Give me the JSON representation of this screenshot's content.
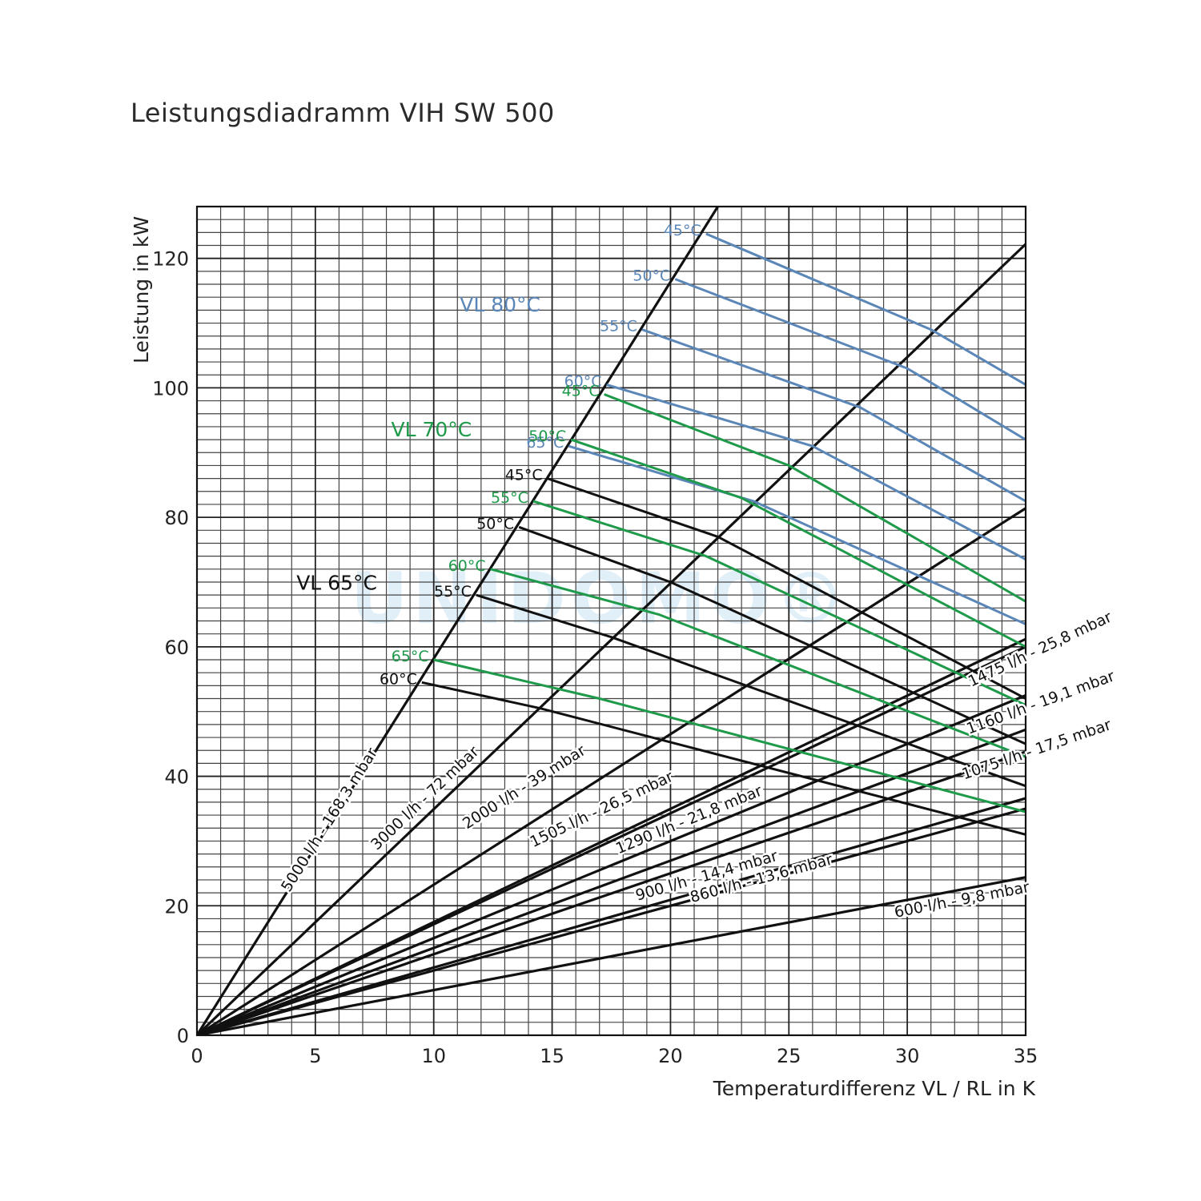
{
  "title": "Leistungsdiadramm VIH SW 500",
  "watermark": "UNIDOMO®",
  "chart_data": {
    "type": "line",
    "title": "Leistungsdiadramm VIH SW 500",
    "xlabel": "Temperaturdifferenz VL / RL in K",
    "ylabel": "Leistung in kW",
    "xlim": [
      0,
      35
    ],
    "ylim": [
      0,
      128
    ],
    "xticks": [
      0,
      5,
      10,
      15,
      20,
      25,
      30,
      35
    ],
    "yticks": [
      0,
      20,
      40,
      60,
      80,
      100,
      120
    ],
    "grid": true,
    "colors": {
      "VL 65°C": "#111111",
      "VL 70°C": "#1e9a4a",
      "VL 80°C": "#5b86b8",
      "flow": "#111111"
    },
    "group_labels": [
      "VL 80°C",
      "VL 70°C",
      "VL 65°C"
    ],
    "flow_lines": [
      {
        "label": "5000 l/h - 168,3 mbar",
        "points": [
          [
            0,
            0
          ],
          [
            22,
            128
          ]
        ]
      },
      {
        "label": "3000 l/h - 72 mbar",
        "points": [
          [
            0,
            0
          ],
          [
            35,
            122.2
          ]
        ]
      },
      {
        "label": "2000 l/h - 39 mbar",
        "points": [
          [
            0,
            0
          ],
          [
            35,
            81.4
          ]
        ]
      },
      {
        "label": "1505 l/h - 26,5 mbar",
        "points": [
          [
            0,
            0
          ],
          [
            35,
            61.2
          ]
        ]
      },
      {
        "label": "1475 l/h - 25,8 mbar",
        "points": [
          [
            0,
            0
          ],
          [
            35,
            60.0
          ]
        ]
      },
      {
        "label": "1290 l/h - 21,8 mbar",
        "points": [
          [
            0,
            0
          ],
          [
            35,
            52.5
          ]
        ]
      },
      {
        "label": "1160 l/h - 19,1 mbar",
        "points": [
          [
            0,
            0
          ],
          [
            35,
            47.2
          ]
        ]
      },
      {
        "label": "1075 l/h - 17,5 mbar",
        "points": [
          [
            0,
            0
          ],
          [
            35,
            43.8
          ]
        ]
      },
      {
        "label": "900 l/h - 14,4 mbar",
        "points": [
          [
            0,
            0
          ],
          [
            35,
            36.6
          ]
        ]
      },
      {
        "label": "860 l/h - 13,6 mbar",
        "points": [
          [
            0,
            0
          ],
          [
            35,
            35.0
          ]
        ]
      },
      {
        "label": "600 l/h - 9,8 mbar",
        "points": [
          [
            0,
            0
          ],
          [
            35,
            24.4
          ]
        ]
      }
    ],
    "series": [
      {
        "group": "VL 80°C",
        "name": "45°C",
        "points": [
          [
            21.5,
            123.8
          ],
          [
            31,
            109
          ],
          [
            35,
            100.5
          ]
        ]
      },
      {
        "group": "VL 80°C",
        "name": "50°C",
        "points": [
          [
            20.2,
            116.8
          ],
          [
            30,
            103
          ],
          [
            35,
            92
          ]
        ]
      },
      {
        "group": "VL 80°C",
        "name": "55°C",
        "points": [
          [
            18.8,
            109
          ],
          [
            28,
            97
          ],
          [
            35,
            82.5
          ]
        ]
      },
      {
        "group": "VL 80°C",
        "name": "60°C",
        "points": [
          [
            17.3,
            100.5
          ],
          [
            26,
            91
          ],
          [
            35,
            73.5
          ]
        ]
      },
      {
        "group": "VL 80°C",
        "name": "65°C",
        "points": [
          [
            15.7,
            91
          ],
          [
            23.5,
            82.5
          ],
          [
            35,
            63.5
          ]
        ]
      },
      {
        "group": "VL 70°C",
        "name": "45°C",
        "points": [
          [
            17.2,
            99
          ],
          [
            25,
            88
          ],
          [
            35,
            67
          ]
        ]
      },
      {
        "group": "VL 70°C",
        "name": "50°C",
        "points": [
          [
            15.8,
            92
          ],
          [
            23,
            83
          ],
          [
            35,
            60
          ]
        ]
      },
      {
        "group": "VL 70°C",
        "name": "55°C",
        "points": [
          [
            14.2,
            82.5
          ],
          [
            21.5,
            74
          ],
          [
            35,
            51
          ]
        ]
      },
      {
        "group": "VL 70°C",
        "name": "60°C",
        "points": [
          [
            12.4,
            72
          ],
          [
            19.5,
            65
          ],
          [
            35,
            43
          ]
        ]
      },
      {
        "group": "VL 70°C",
        "name": "65°C",
        "points": [
          [
            10,
            58
          ],
          [
            17,
            52
          ],
          [
            35,
            34.5
          ]
        ]
      },
      {
        "group": "VL 65°C",
        "name": "45°C",
        "points": [
          [
            14.8,
            86
          ],
          [
            22,
            77
          ],
          [
            35,
            52
          ]
        ]
      },
      {
        "group": "VL 65°C",
        "name": "50°C",
        "points": [
          [
            13.6,
            78.5
          ],
          [
            20,
            70
          ],
          [
            35,
            45
          ]
        ]
      },
      {
        "group": "VL 65°C",
        "name": "55°C",
        "points": [
          [
            11.8,
            68
          ],
          [
            17.5,
            61.5
          ],
          [
            35,
            38.5
          ]
        ]
      },
      {
        "group": "VL 65°C",
        "name": "60°C",
        "points": [
          [
            9.5,
            54.5
          ],
          [
            14.5,
            50.5
          ],
          [
            35,
            31
          ]
        ]
      }
    ]
  }
}
